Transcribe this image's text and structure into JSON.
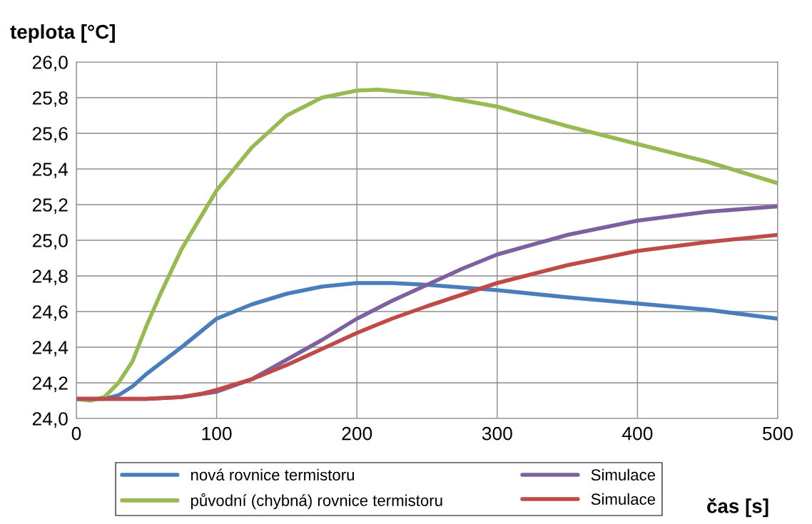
{
  "chart_data": {
    "type": "line",
    "xlabel": "čas [s]",
    "ylabel": "teplota [°C]",
    "xlim": [
      0,
      500
    ],
    "xticks": [
      0,
      100,
      200,
      300,
      400,
      500
    ],
    "ylim": [
      24.0,
      26.0
    ],
    "yticks": [
      {
        "value": 24.0,
        "label": "24,0"
      },
      {
        "value": 24.2,
        "label": "24,2"
      },
      {
        "value": 24.4,
        "label": "24,4"
      },
      {
        "value": 24.6,
        "label": "24,6"
      },
      {
        "value": 24.8,
        "label": "24,8"
      },
      {
        "value": 25.0,
        "label": "25,0"
      },
      {
        "value": 25.2,
        "label": "25,2"
      },
      {
        "value": 25.4,
        "label": "25,4"
      },
      {
        "value": 25.6,
        "label": "25,6"
      },
      {
        "value": 25.8,
        "label": "25,8"
      },
      {
        "value": 26.0,
        "label": "26,0"
      }
    ],
    "grid": true,
    "legend": "bottom",
    "marker": "none",
    "line_style": "solid",
    "series": [
      {
        "name": "nová rovnice termistoru",
        "color": "#4a7ebb",
        "x": [
          0,
          20,
          30,
          40,
          50,
          60,
          75,
          100,
          125,
          150,
          175,
          200,
          225,
          250,
          300,
          350,
          400,
          450,
          500
        ],
        "values": [
          24.11,
          24.11,
          24.13,
          24.18,
          24.25,
          24.31,
          24.4,
          24.56,
          24.64,
          24.7,
          24.74,
          24.76,
          24.76,
          24.75,
          24.72,
          24.68,
          24.645,
          24.61,
          24.56
        ]
      },
      {
        "name": "původní (chybná) rovnice termistoru",
        "color": "#98b954",
        "x": [
          0,
          10,
          20,
          30,
          40,
          50,
          60,
          75,
          100,
          125,
          150,
          175,
          200,
          215,
          250,
          300,
          350,
          400,
          450,
          475,
          500
        ],
        "values": [
          24.11,
          24.1,
          24.12,
          24.2,
          24.32,
          24.52,
          24.7,
          24.95,
          25.28,
          25.52,
          25.7,
          25.8,
          25.84,
          25.845,
          25.82,
          25.75,
          25.64,
          25.54,
          25.44,
          25.38,
          25.32
        ]
      },
      {
        "name": "Simulace",
        "color": "#7d60a0",
        "x": [
          0,
          50,
          75,
          100,
          125,
          150,
          175,
          200,
          225,
          250,
          275,
          300,
          350,
          400,
          450,
          500
        ],
        "values": [
          24.11,
          24.11,
          24.12,
          24.15,
          24.22,
          24.33,
          24.44,
          24.56,
          24.66,
          24.75,
          24.84,
          24.92,
          25.03,
          25.11,
          25.16,
          25.19
        ]
      },
      {
        "name": "Simulace",
        "color": "#be4b48",
        "x": [
          0,
          50,
          75,
          90,
          100,
          125,
          150,
          175,
          200,
          225,
          250,
          300,
          350,
          400,
          450,
          500
        ],
        "values": [
          24.11,
          24.11,
          24.12,
          24.14,
          24.16,
          24.22,
          24.3,
          24.39,
          24.48,
          24.56,
          24.63,
          24.76,
          24.86,
          24.94,
          24.99,
          25.03
        ]
      }
    ]
  }
}
